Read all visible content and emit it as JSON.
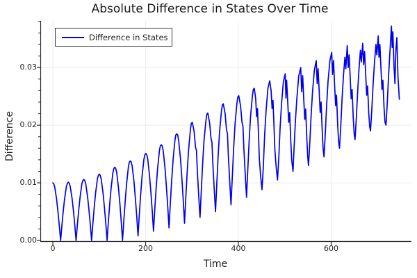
{
  "title": "Absolute Difference in States Over Time",
  "legend": {
    "label": "Difference in States"
  },
  "axes": {
    "x_label": "Time",
    "y_label": "Difference"
  },
  "colors": {
    "line": "#0000ee",
    "grid": "#ececec",
    "spine": "#2b2b2b",
    "text": "#1f1f1f",
    "background": "#ffffff"
  },
  "chart_data": {
    "type": "line",
    "title": "Absolute Difference in States Over Time",
    "xlabel": "Time",
    "ylabel": "Difference",
    "xlim": [
      -27,
      773
    ],
    "ylim": [
      -0.00024,
      0.0381
    ],
    "xticks": [
      0,
      200,
      400,
      600
    ],
    "xtick_labels": [
      "0",
      "200",
      "400",
      "600"
    ],
    "yticks": [
      0,
      0.01,
      0.02,
      0.03
    ],
    "ytick_labels": [
      "0.00",
      "0.01",
      "0.02",
      "0.03"
    ],
    "y_minor_step": 0.002,
    "grid": true,
    "legend_position": "top-left",
    "series": [
      {
        "name": "Difference in States",
        "color": "#0000ee",
        "points": [
          [
            0,
            0.01
          ],
          [
            2,
            0.0098
          ],
          [
            4,
            0.0093
          ],
          [
            8,
            0.0072
          ],
          [
            11,
            0.005
          ],
          [
            14,
            0.0025
          ],
          [
            16.7,
            0.0
          ],
          [
            19.4,
            0.0025
          ],
          [
            22.4,
            0.0051
          ],
          [
            25.4,
            0.0073
          ],
          [
            29.4,
            0.0094
          ],
          [
            31.4,
            0.0099
          ],
          [
            33.4,
            0.0101
          ],
          [
            35.4,
            0.0099
          ],
          [
            37.4,
            0.0094
          ],
          [
            41.4,
            0.0073
          ],
          [
            44.4,
            0.0051
          ],
          [
            47.4,
            0.0025
          ],
          [
            50.1,
            0.0
          ],
          [
            52.8,
            0.0027
          ],
          [
            55.8,
            0.0053
          ],
          [
            58.8,
            0.0076
          ],
          [
            62.8,
            0.0099
          ],
          [
            64.8,
            0.0104
          ],
          [
            66.8,
            0.0106
          ],
          [
            68.8,
            0.0104
          ],
          [
            70.8,
            0.0099
          ],
          [
            74.8,
            0.0076
          ],
          [
            77.8,
            0.0053
          ],
          [
            80.8,
            0.0027
          ],
          [
            83.5,
            0.0
          ],
          [
            86.2,
            0.0029
          ],
          [
            89.2,
            0.0058
          ],
          [
            92.2,
            0.0083
          ],
          [
            96.2,
            0.0107
          ],
          [
            98.2,
            0.0113
          ],
          [
            100.2,
            0.0115
          ],
          [
            102.2,
            0.0113
          ],
          [
            104.2,
            0.0107
          ],
          [
            108.2,
            0.0083
          ],
          [
            111.2,
            0.0058
          ],
          [
            114.2,
            0.0029
          ],
          [
            116.9,
            0.0
          ],
          [
            119.6,
            0.0032
          ],
          [
            122.6,
            0.0064
          ],
          [
            125.6,
            0.0091
          ],
          [
            129.6,
            0.0118
          ],
          [
            131.6,
            0.0125
          ],
          [
            133.6,
            0.0127
          ],
          [
            135.6,
            0.0125
          ],
          [
            137.6,
            0.0118
          ],
          [
            141.6,
            0.0091
          ],
          [
            144.6,
            0.0064
          ],
          [
            147.6,
            0.0032
          ],
          [
            150.3,
            0.0
          ],
          [
            153,
            0.0035
          ],
          [
            156,
            0.0069
          ],
          [
            159,
            0.0099
          ],
          [
            163,
            0.0128
          ],
          [
            165,
            0.0136
          ],
          [
            167,
            0.0138
          ],
          [
            169,
            0.0136
          ],
          [
            171,
            0.0129
          ],
          [
            175,
            0.0102
          ],
          [
            178,
            0.0073
          ],
          [
            181,
            0.0041
          ],
          [
            183.7,
            0.0008
          ],
          [
            186.4,
            0.0044
          ],
          [
            189.4,
            0.008
          ],
          [
            192.4,
            0.0111
          ],
          [
            196.4,
            0.0141
          ],
          [
            198.4,
            0.0149
          ],
          [
            200.4,
            0.0151
          ],
          [
            202.4,
            0.0149
          ],
          [
            204.4,
            0.0142
          ],
          [
            208.4,
            0.0113
          ],
          [
            211.4,
            0.0084
          ],
          [
            214.4,
            0.005
          ],
          [
            217.1,
            0.0016
          ],
          [
            219.8,
            0.0054
          ],
          [
            222.8,
            0.0091
          ],
          [
            225.8,
            0.0124
          ],
          [
            229.8,
            0.0156
          ],
          [
            231.8,
            0.0164
          ],
          [
            233.8,
            0.0166
          ],
          [
            235.8,
            0.0164
          ],
          [
            237.8,
            0.0156
          ],
          [
            241.8,
            0.0126
          ],
          [
            244.8,
            0.0094
          ],
          [
            247.8,
            0.0058
          ],
          [
            250.5,
            0.0022
          ],
          [
            253.2,
            0.0063
          ],
          [
            256.2,
            0.0104
          ],
          [
            259.2,
            0.0139
          ],
          [
            263.2,
            0.0174
          ],
          [
            265.2,
            0.0183
          ],
          [
            267.2,
            0.0185
          ],
          [
            269.2,
            0.0183
          ],
          [
            271.2,
            0.0174
          ],
          [
            275.2,
            0.0142
          ],
          [
            278.2,
            0.0108
          ],
          [
            281.2,
            0.0069
          ],
          [
            283.9,
            0.003
          ],
          [
            286.6,
            0.0074
          ],
          [
            289.6,
            0.0118
          ],
          [
            292.6,
            0.0156
          ],
          [
            296.6,
            0.0193
          ],
          [
            298.6,
            0.0203
          ],
          [
            300.6,
            0.0205
          ],
          [
            304.6,
            0.0189
          ],
          [
            307.6,
            0.0162
          ],
          [
            309.6,
            0.0156
          ],
          [
            311.6,
            0.0119
          ],
          [
            314.6,
            0.0076
          ],
          [
            317.3,
            0.004
          ],
          [
            320,
            0.0085
          ],
          [
            323,
            0.0134
          ],
          [
            326,
            0.0174
          ],
          [
            330,
            0.0208
          ],
          [
            332,
            0.0219
          ],
          [
            334,
            0.0221
          ],
          [
            338,
            0.0204
          ],
          [
            341,
            0.0177
          ],
          [
            343,
            0.017
          ],
          [
            345,
            0.0132
          ],
          [
            348,
            0.0088
          ],
          [
            350.7,
            0.005
          ],
          [
            353.4,
            0.0097
          ],
          [
            356.4,
            0.0147
          ],
          [
            359.4,
            0.0188
          ],
          [
            363.4,
            0.0224
          ],
          [
            365.4,
            0.0235
          ],
          [
            367.4,
            0.0237
          ],
          [
            371.4,
            0.022
          ],
          [
            374.4,
            0.0192
          ],
          [
            376.4,
            0.0185
          ],
          [
            378.4,
            0.0146
          ],
          [
            381.4,
            0.0101
          ],
          [
            384.1,
            0.0062
          ],
          [
            386.8,
            0.0109
          ],
          [
            389.8,
            0.016
          ],
          [
            392.8,
            0.0202
          ],
          [
            396.8,
            0.0238
          ],
          [
            398.8,
            0.0249
          ],
          [
            400.8,
            0.0251
          ],
          [
            404.8,
            0.0233
          ],
          [
            407.8,
            0.0205
          ],
          [
            409.8,
            0.0198
          ],
          [
            411.8,
            0.0159
          ],
          [
            414.8,
            0.0114
          ],
          [
            417.5,
            0.0075
          ],
          [
            420.2,
            0.0122
          ],
          [
            423.2,
            0.0173
          ],
          [
            426.2,
            0.0215
          ],
          [
            430.2,
            0.0251
          ],
          [
            432.2,
            0.0262
          ],
          [
            434.2,
            0.0264
          ],
          [
            437.2,
            0.0246
          ],
          [
            439.2,
            0.0215
          ],
          [
            441.2,
            0.0229
          ],
          [
            443.2,
            0.0185
          ],
          [
            445.2,
            0.0141
          ],
          [
            448.2,
            0.0109
          ],
          [
            450.9,
            0.0088
          ],
          [
            453.6,
            0.0126
          ],
          [
            456.6,
            0.0183
          ],
          [
            459.6,
            0.0224
          ],
          [
            463.6,
            0.0264
          ],
          [
            467.6,
            0.0277
          ],
          [
            470.6,
            0.026
          ],
          [
            472.6,
            0.0229
          ],
          [
            474.6,
            0.0243
          ],
          [
            476.6,
            0.02
          ],
          [
            478.6,
            0.0157
          ],
          [
            481.6,
            0.0126
          ],
          [
            484.3,
            0.0105
          ],
          [
            487,
            0.0142
          ],
          [
            490,
            0.0197
          ],
          [
            493,
            0.0237
          ],
          [
            497,
            0.0276
          ],
          [
            501,
            0.0289
          ],
          [
            502.5,
            0.0247
          ],
          [
            504,
            0.0278
          ],
          [
            506.5,
            0.0238
          ],
          [
            508.5,
            0.0205
          ],
          [
            510.5,
            0.0222
          ],
          [
            513,
            0.0172
          ],
          [
            515,
            0.0139
          ],
          [
            517.7,
            0.012
          ],
          [
            520,
            0.016
          ],
          [
            523,
            0.0208
          ],
          [
            526,
            0.0246
          ],
          [
            530,
            0.0285
          ],
          [
            534.4,
            0.03
          ],
          [
            536.5,
            0.0258
          ],
          [
            538.5,
            0.0286
          ],
          [
            541,
            0.0244
          ],
          [
            543,
            0.021
          ],
          [
            545,
            0.0228
          ],
          [
            547.5,
            0.0176
          ],
          [
            549.5,
            0.0145
          ],
          [
            551.1,
            0.013
          ],
          [
            553.8,
            0.0168
          ],
          [
            556.8,
            0.0218
          ],
          [
            559.8,
            0.0258
          ],
          [
            563.8,
            0.0296
          ],
          [
            567.8,
            0.0312
          ],
          [
            569.8,
            0.0272
          ],
          [
            571.8,
            0.0298
          ],
          [
            574.3,
            0.0256
          ],
          [
            576.3,
            0.0222
          ],
          [
            578.3,
            0.024
          ],
          [
            580.8,
            0.0188
          ],
          [
            582.8,
            0.0158
          ],
          [
            584.5,
            0.0145
          ],
          [
            587.2,
            0.0184
          ],
          [
            590.2,
            0.0235
          ],
          [
            593.2,
            0.0276
          ],
          [
            597.2,
            0.0312
          ],
          [
            601.2,
            0.0326
          ],
          [
            603,
            0.0288
          ],
          [
            605,
            0.0312
          ],
          [
            607.5,
            0.0268
          ],
          [
            609.5,
            0.0234
          ],
          [
            611.5,
            0.0252
          ],
          [
            614,
            0.02
          ],
          [
            616,
            0.0172
          ],
          [
            617.9,
            0.016
          ],
          [
            620.6,
            0.0198
          ],
          [
            623.6,
            0.0248
          ],
          [
            626.6,
            0.0288
          ],
          [
            629.6,
            0.0318
          ],
          [
            631.6,
            0.0298
          ],
          [
            634.6,
            0.0338
          ],
          [
            636.6,
            0.03
          ],
          [
            638.6,
            0.0322
          ],
          [
            641.1,
            0.028
          ],
          [
            643.1,
            0.0246
          ],
          [
            645.1,
            0.0262
          ],
          [
            647.6,
            0.0212
          ],
          [
            649.6,
            0.0185
          ],
          [
            651.3,
            0.0175
          ],
          [
            654,
            0.021
          ],
          [
            657,
            0.0258
          ],
          [
            660,
            0.0298
          ],
          [
            663,
            0.033
          ],
          [
            665,
            0.031
          ],
          [
            668,
            0.0342
          ],
          [
            670,
            0.0305
          ],
          [
            672,
            0.0328
          ],
          [
            674.5,
            0.0285
          ],
          [
            676.5,
            0.0252
          ],
          [
            678.5,
            0.0268
          ],
          [
            681,
            0.022
          ],
          [
            683,
            0.0198
          ],
          [
            684.7,
            0.019
          ],
          [
            687.4,
            0.0225
          ],
          [
            690.4,
            0.0272
          ],
          [
            693.4,
            0.031
          ],
          [
            696.4,
            0.034
          ],
          [
            698.4,
            0.0322
          ],
          [
            701.4,
            0.0355
          ],
          [
            703,
            0.0318
          ],
          [
            705,
            0.034
          ],
          [
            707.5,
            0.0295
          ],
          [
            709.5,
            0.0262
          ],
          [
            711.5,
            0.0278
          ],
          [
            714,
            0.023
          ],
          [
            716,
            0.0205
          ],
          [
            718.1,
            0.02
          ],
          [
            720.8,
            0.0238
          ],
          [
            723.8,
            0.0288
          ],
          [
            726.8,
            0.033
          ],
          [
            729.8,
            0.0372
          ],
          [
            731.5,
            0.0335
          ],
          [
            733,
            0.0362
          ],
          [
            735.5,
            0.03
          ],
          [
            737.5,
            0.0272
          ],
          [
            739.5,
            0.033
          ],
          [
            741.5,
            0.0352
          ],
          [
            744,
            0.0285
          ],
          [
            747,
            0.0245
          ]
        ]
      }
    ]
  }
}
